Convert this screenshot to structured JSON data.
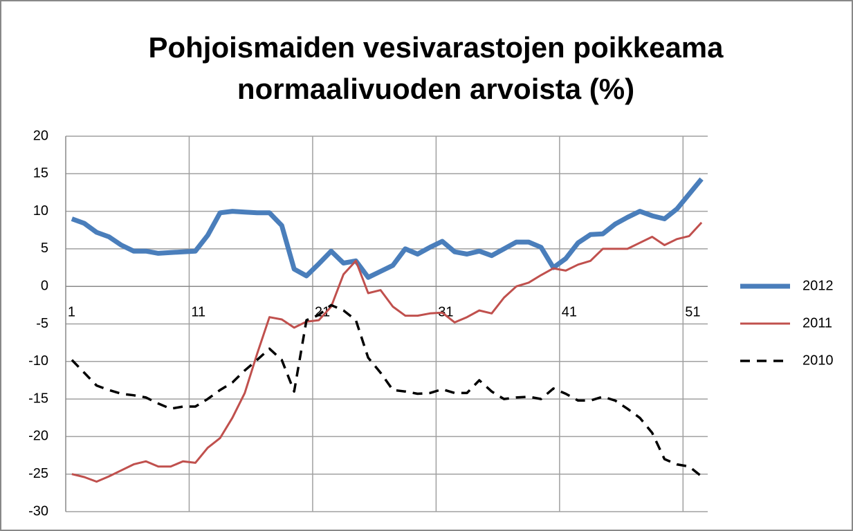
{
  "chart_data": {
    "type": "line",
    "title": [
      "Pohjoismaiden vesivarastojen poikkeama",
      "normaalivuoden arvoista   (%)"
    ],
    "categories": [
      1,
      null,
      null,
      null,
      null,
      null,
      null,
      null,
      null,
      null,
      11,
      null,
      null,
      null,
      null,
      null,
      null,
      null,
      null,
      null,
      21,
      null,
      null,
      null,
      null,
      null,
      null,
      null,
      null,
      null,
      31,
      null,
      null,
      null,
      null,
      null,
      null,
      null,
      null,
      null,
      41,
      null,
      null,
      null,
      null,
      null,
      null,
      null,
      null,
      null,
      51,
      null
    ],
    "series": [
      {
        "name": "2012",
        "color": "#4a7ebb",
        "width": 7,
        "dashed": false,
        "values": [
          9,
          8.4,
          7.2,
          6.6,
          5.5,
          4.7,
          4.7,
          4.4,
          4.5,
          4.6,
          4.7,
          6.8,
          9.8,
          10,
          9.9,
          9.8,
          9.8,
          8.1,
          2.3,
          1.4,
          3,
          4.7,
          3.1,
          3.4,
          1.2,
          2,
          2.8,
          5,
          4.3,
          5.2,
          6,
          4.6,
          4.3,
          4.7,
          4.1,
          5,
          5.9,
          5.9,
          5.2,
          2.5,
          3.7,
          5.8,
          6.9,
          7,
          8.3,
          9.2,
          10,
          9.4,
          9,
          10.3,
          12.3,
          14.3
        ]
      },
      {
        "name": "2011",
        "color": "#c0504d",
        "width": 3,
        "dashed": false,
        "values": [
          -25,
          -25.4,
          -26,
          -25.3,
          -24.5,
          -23.7,
          -23.3,
          -24,
          -24,
          -23.3,
          -23.5,
          -21.5,
          -20.2,
          -17.5,
          -14.2,
          -9,
          -4.1,
          -4.4,
          -5.5,
          -4.7,
          -4.5,
          -2.7,
          1.6,
          3.4,
          -0.9,
          -0.5,
          -2.7,
          -3.9,
          -3.9,
          -3.6,
          -3.5,
          -4.8,
          -4.1,
          -3.2,
          -3.6,
          -1.5,
          0,
          0.5,
          1.5,
          2.4,
          2.1,
          2.9,
          3.4,
          5,
          5,
          5,
          5.8,
          6.6,
          5.5,
          6.3,
          6.7,
          8.5
        ]
      },
      {
        "name": "2010",
        "color": "#000000",
        "width": 3.5,
        "dashed": true,
        "values": [
          -9.8,
          -11.5,
          -13.2,
          -13.8,
          -14.3,
          -14.5,
          -14.8,
          -15.6,
          -16.3,
          -16,
          -16,
          -15,
          -13.8,
          -12.8,
          -11.2,
          -9.8,
          -8.3,
          -9.8,
          -14,
          -4.5,
          -3.8,
          -2.5,
          -3.2,
          -4.5,
          -9.5,
          -11.5,
          -13.8,
          -14,
          -14.3,
          -14.2,
          -13.7,
          -14.2,
          -14.2,
          -12.5,
          -14,
          -15,
          -14.8,
          -14.7,
          -15,
          -13.6,
          -14.3,
          -15.2,
          -15.2,
          -14.7,
          -15.2,
          -16.3,
          -17.5,
          -19.5,
          -23,
          -23.7,
          -24,
          -25.3
        ]
      }
    ],
    "ylim": [
      -30,
      20
    ],
    "yticks": [
      -30,
      -25,
      -20,
      -15,
      -10,
      -5,
      0,
      5,
      10,
      15,
      20
    ],
    "grid": true,
    "legend": "right"
  }
}
